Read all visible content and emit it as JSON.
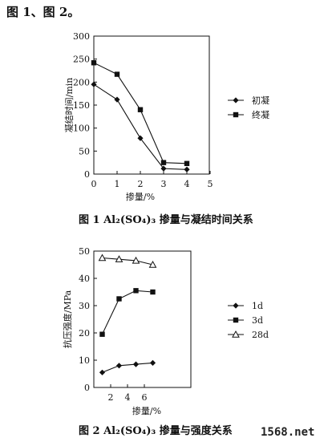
{
  "intro_text": "图 1、图 2。",
  "chart_data": [
    {
      "type": "line",
      "ylabel": "凝结时间/min",
      "xlabel": "掺量/%",
      "x": [
        0,
        1,
        2,
        3,
        4,
        5
      ],
      "xlim": [
        0,
        6
      ],
      "ylim": [
        0,
        300
      ],
      "yticks": [
        0,
        50,
        100,
        150,
        200,
        250,
        300
      ],
      "series": [
        {
          "name": "初凝",
          "marker": "diamond",
          "x": [
            0,
            1,
            2,
            3,
            4
          ],
          "values": [
            195,
            162,
            78,
            12,
            10
          ]
        },
        {
          "name": "终凝",
          "marker": "square",
          "x": [
            0,
            1,
            2,
            3,
            4
          ],
          "values": [
            242,
            217,
            140,
            25,
            23
          ]
        }
      ],
      "caption": "图 1    Al₂(SO₄)₃ 掺量与凝结时间关系",
      "legend_position": "right"
    },
    {
      "type": "line",
      "ylabel": "抗压强度/MPa",
      "xlabel": "掺量/%",
      "xticks": [
        2,
        4,
        6
      ],
      "xlim": [
        0,
        10
      ],
      "ylim": [
        0,
        50
      ],
      "yticks": [
        0,
        10,
        20,
        30,
        40,
        50
      ],
      "series": [
        {
          "name": "1d",
          "marker": "diamond",
          "x": [
            1,
            3,
            5,
            7
          ],
          "values": [
            5.5,
            8,
            8.5,
            9
          ]
        },
        {
          "name": "3d",
          "marker": "square",
          "x": [
            1,
            3,
            5,
            7
          ],
          "values": [
            19.5,
            32.5,
            35.5,
            35
          ]
        },
        {
          "name": "28d",
          "marker": "triangle-open",
          "x": [
            1,
            3,
            5,
            7
          ],
          "values": [
            47.5,
            47,
            46.5,
            45
          ]
        }
      ],
      "caption": "图 2    Al₂(SO₄)₃ 掺量与强度关系",
      "legend_position": "right"
    }
  ],
  "watermark": "1568.net"
}
